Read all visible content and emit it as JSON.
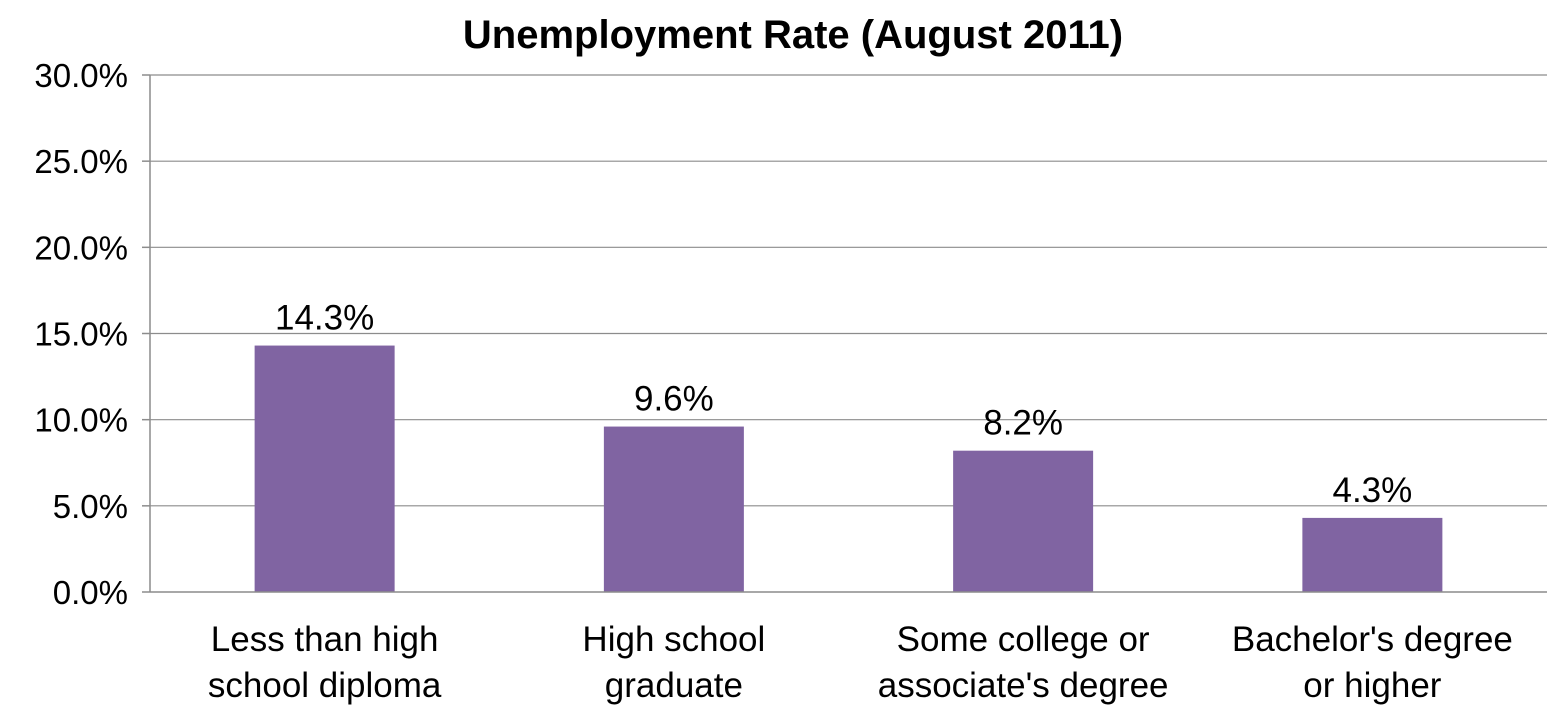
{
  "chart_data": {
    "type": "bar",
    "title": "Unemployment Rate (August 2011)",
    "xlabel": "",
    "ylabel": "",
    "categories": [
      [
        "Less than high",
        "school diploma"
      ],
      [
        "High school",
        "graduate"
      ],
      [
        "Some college or",
        "associate's degree"
      ],
      [
        "Bachelor's degree",
        "or higher"
      ]
    ],
    "values": [
      14.3,
      9.6,
      8.2,
      4.3
    ],
    "value_labels": [
      "14.3%",
      "9.6%",
      "8.2%",
      "4.3%"
    ],
    "ylim": [
      0,
      30
    ],
    "yticks": [
      0,
      5,
      10,
      15,
      20,
      25,
      30
    ],
    "ytick_labels": [
      "0.0%",
      "5.0%",
      "10.0%",
      "15.0%",
      "20.0%",
      "25.0%",
      "30.0%"
    ],
    "grid": true,
    "legend": "none",
    "bar_color": "#8064a2"
  }
}
